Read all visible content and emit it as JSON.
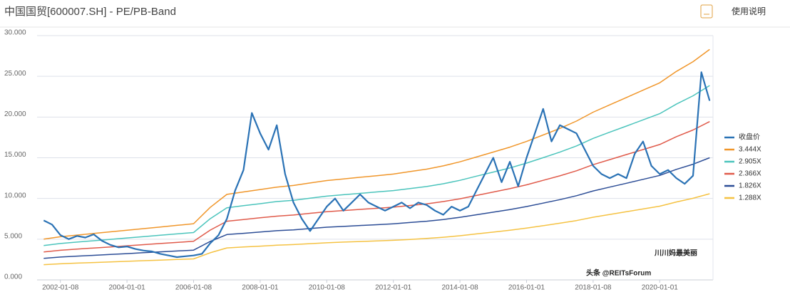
{
  "chart_data": {
    "type": "line",
    "title": "中国国贸[600007.SH] - PE/PB-Band",
    "help_label": "使用说明",
    "annotations": [
      "川川妈最美丽",
      "头条 @REITsForum"
    ],
    "xlim": [
      2001.3,
      2021.6
    ],
    "ylim": [
      0,
      30
    ],
    "xticks": [
      {
        "value": 2002,
        "label": "2002-01-08"
      },
      {
        "value": 2004,
        "label": "2004-01-01"
      },
      {
        "value": 2006,
        "label": "2006-01-08"
      },
      {
        "value": 2008,
        "label": "2008-01-01"
      },
      {
        "value": 2010,
        "label": "2010-01-08"
      },
      {
        "value": 2012,
        "label": "2012-01-01"
      },
      {
        "value": 2014,
        "label": "2014-01-08"
      },
      {
        "value": 2016,
        "label": "2016-01-01"
      },
      {
        "value": 2018,
        "label": "2018-01-08"
      },
      {
        "value": 2020,
        "label": "2020-01-01"
      }
    ],
    "yticks": [
      {
        "value": 0,
        "label": "0.000"
      },
      {
        "value": 5,
        "label": "5.000"
      },
      {
        "value": 10,
        "label": "10.000"
      },
      {
        "value": 15,
        "label": "15.000"
      },
      {
        "value": 20,
        "label": "20.000"
      },
      {
        "value": 25,
        "label": "25.000"
      },
      {
        "value": 30,
        "label": "30.000"
      }
    ],
    "grid": true,
    "legend": "right",
    "x": [
      2001.5,
      2002,
      2002.5,
      2003,
      2003.5,
      2004,
      2004.5,
      2005,
      2005.5,
      2006,
      2006.5,
      2007,
      2007.5,
      2008,
      2008.5,
      2009,
      2009.5,
      2010,
      2010.5,
      2011,
      2011.5,
      2012,
      2012.5,
      2013,
      2013.5,
      2014,
      2014.5,
      2015,
      2015.5,
      2016,
      2016.5,
      2017,
      2017.5,
      2018,
      2018.5,
      2019,
      2019.5,
      2020,
      2020.5,
      2021,
      2021.5
    ],
    "series": [
      {
        "name": "收盘价",
        "color": "#2a72b5",
        "width": 2.2,
        "x": [
          2001.5,
          2001.75,
          2002,
          2002.25,
          2002.5,
          2002.75,
          2003,
          2003.25,
          2003.5,
          2003.75,
          2004,
          2004.25,
          2004.5,
          2004.75,
          2005,
          2005.25,
          2005.5,
          2005.75,
          2006,
          2006.25,
          2006.5,
          2006.75,
          2007,
          2007.25,
          2007.5,
          2007.75,
          2008,
          2008.25,
          2008.5,
          2008.75,
          2009,
          2009.25,
          2009.5,
          2009.75,
          2010,
          2010.25,
          2010.5,
          2010.75,
          2011,
          2011.25,
          2011.5,
          2011.75,
          2012,
          2012.25,
          2012.5,
          2012.75,
          2013,
          2013.25,
          2013.5,
          2013.75,
          2014,
          2014.25,
          2014.5,
          2014.75,
          2015,
          2015.25,
          2015.5,
          2015.75,
          2016,
          2016.25,
          2016.5,
          2016.75,
          2017,
          2017.25,
          2017.5,
          2017.75,
          2018,
          2018.25,
          2018.5,
          2018.75,
          2019,
          2019.25,
          2019.5,
          2019.75,
          2020,
          2020.25,
          2020.5,
          2020.75,
          2021,
          2021.25,
          2021.5
        ],
        "values": [
          7.3,
          6.8,
          5.5,
          5.0,
          5.4,
          5.2,
          5.6,
          4.8,
          4.3,
          4.0,
          4.1,
          3.8,
          3.6,
          3.5,
          3.2,
          3.0,
          2.8,
          2.9,
          3.0,
          3.2,
          4.5,
          5.5,
          7.5,
          11.0,
          13.5,
          20.5,
          18.0,
          16.0,
          19.0,
          13.0,
          9.5,
          7.5,
          6.0,
          7.5,
          9.0,
          10.0,
          8.5,
          9.5,
          10.5,
          9.5,
          9.0,
          8.5,
          9.0,
          9.5,
          8.8,
          9.5,
          9.2,
          8.5,
          8.0,
          9.0,
          8.5,
          9.0,
          11.0,
          13.0,
          15.0,
          12.0,
          14.5,
          11.5,
          15.0,
          18.0,
          21.0,
          17.0,
          19.0,
          18.5,
          18.0,
          16.0,
          14.0,
          13.0,
          12.5,
          13.0,
          12.5,
          15.5,
          17.0,
          14.0,
          13.0,
          13.5,
          12.5,
          11.8,
          12.8,
          25.5,
          22.0
        ]
      },
      {
        "name": "3.444X",
        "color": "#f0962a",
        "width": 1.5,
        "values": [
          5.0,
          5.3,
          5.5,
          5.7,
          5.9,
          6.1,
          6.3,
          6.5,
          6.7,
          6.9,
          8.9,
          10.5,
          10.8,
          11.1,
          11.4,
          11.6,
          11.9,
          12.2,
          12.4,
          12.6,
          12.8,
          13.0,
          13.3,
          13.6,
          14.0,
          14.5,
          15.1,
          15.7,
          16.3,
          17.0,
          17.8,
          18.6,
          19.5,
          20.6,
          21.5,
          22.4,
          23.3,
          24.2,
          25.6,
          26.8,
          28.3
        ]
      },
      {
        "name": "2.905X",
        "color": "#4bc4bc",
        "width": 1.5,
        "values": [
          4.22,
          4.47,
          4.64,
          4.81,
          4.98,
          5.15,
          5.31,
          5.48,
          5.65,
          5.82,
          7.51,
          8.86,
          9.11,
          9.36,
          9.62,
          9.78,
          10.04,
          10.29,
          10.46,
          10.63,
          10.8,
          10.97,
          11.22,
          11.47,
          11.81,
          12.23,
          12.74,
          13.24,
          13.75,
          14.34,
          15.01,
          15.69,
          16.45,
          17.38,
          18.14,
          18.89,
          19.65,
          20.41,
          21.59,
          22.61,
          23.87
        ]
      },
      {
        "name": "2.366X",
        "color": "#e05a4a",
        "width": 1.5,
        "values": [
          3.44,
          3.64,
          3.78,
          3.92,
          4.05,
          4.19,
          4.33,
          4.47,
          4.6,
          4.74,
          6.11,
          7.21,
          7.42,
          7.63,
          7.83,
          7.97,
          8.18,
          8.38,
          8.52,
          8.66,
          8.79,
          8.93,
          9.14,
          9.34,
          9.62,
          9.96,
          10.37,
          10.79,
          11.2,
          11.68,
          12.23,
          12.78,
          13.4,
          14.15,
          14.77,
          15.39,
          16.01,
          16.63,
          17.59,
          18.41,
          19.44
        ]
      },
      {
        "name": "1.826X",
        "color": "#2c4d96",
        "width": 1.5,
        "values": [
          2.65,
          2.81,
          2.92,
          3.02,
          3.13,
          3.23,
          3.34,
          3.45,
          3.55,
          3.66,
          4.72,
          5.57,
          5.72,
          5.88,
          6.04,
          6.15,
          6.31,
          6.47,
          6.57,
          6.68,
          6.78,
          6.89,
          7.05,
          7.21,
          7.42,
          7.69,
          8.0,
          8.32,
          8.64,
          9.01,
          9.43,
          9.86,
          10.34,
          10.92,
          11.4,
          11.87,
          12.35,
          12.83,
          13.57,
          14.2,
          15.0
        ]
      },
      {
        "name": "1.288X",
        "color": "#f5c242",
        "width": 1.5,
        "values": [
          1.87,
          1.98,
          2.06,
          2.13,
          2.21,
          2.28,
          2.36,
          2.43,
          2.51,
          2.58,
          3.33,
          3.93,
          4.04,
          4.15,
          4.26,
          4.34,
          4.45,
          4.56,
          4.64,
          4.71,
          4.79,
          4.86,
          4.97,
          5.09,
          5.24,
          5.42,
          5.65,
          5.87,
          6.1,
          6.36,
          6.66,
          6.96,
          7.29,
          7.7,
          8.04,
          8.38,
          8.71,
          9.05,
          9.57,
          10.02,
          10.58
        ]
      }
    ]
  }
}
